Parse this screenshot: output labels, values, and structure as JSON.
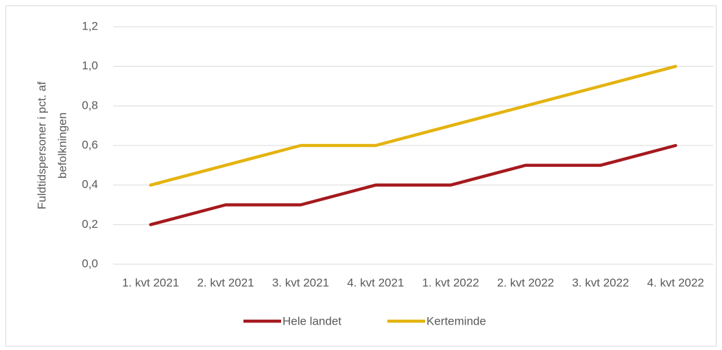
{
  "chart_data": {
    "type": "line",
    "ylabel": [
      "Fuldtidspersoner i pct. af",
      "befolkningen"
    ],
    "categories": [
      "1. kvt 2021",
      "2. kvt 2021",
      "3. kvt 2021",
      "4. kvt 2021",
      "1. kvt 2022",
      "2. kvt 2022",
      "3. kvt 2022",
      "4. kvt 2022"
    ],
    "series": [
      {
        "name": "Hele landet",
        "color": "#a5191e",
        "values": [
          0.2,
          0.3,
          0.3,
          0.4,
          0.4,
          0.5,
          0.5,
          0.6
        ]
      },
      {
        "name": "Kerteminde",
        "color": "#e4b30f",
        "values": [
          0.4,
          0.5,
          0.6,
          0.6,
          0.7,
          0.8,
          0.9,
          1.0
        ]
      }
    ],
    "ylim": [
      0,
      1.2
    ],
    "yticks": [
      {
        "value": 0,
        "label": "0,0"
      },
      {
        "value": 0.2,
        "label": "0,2"
      },
      {
        "value": 0.4,
        "label": "0,4"
      },
      {
        "value": 0.6,
        "label": "0,6"
      },
      {
        "value": 0.8,
        "label": "0,8"
      },
      {
        "value": 1.0,
        "label": "1,0"
      },
      {
        "value": 1.2,
        "label": "1,2"
      }
    ],
    "grid": true,
    "legend": "bottom"
  }
}
